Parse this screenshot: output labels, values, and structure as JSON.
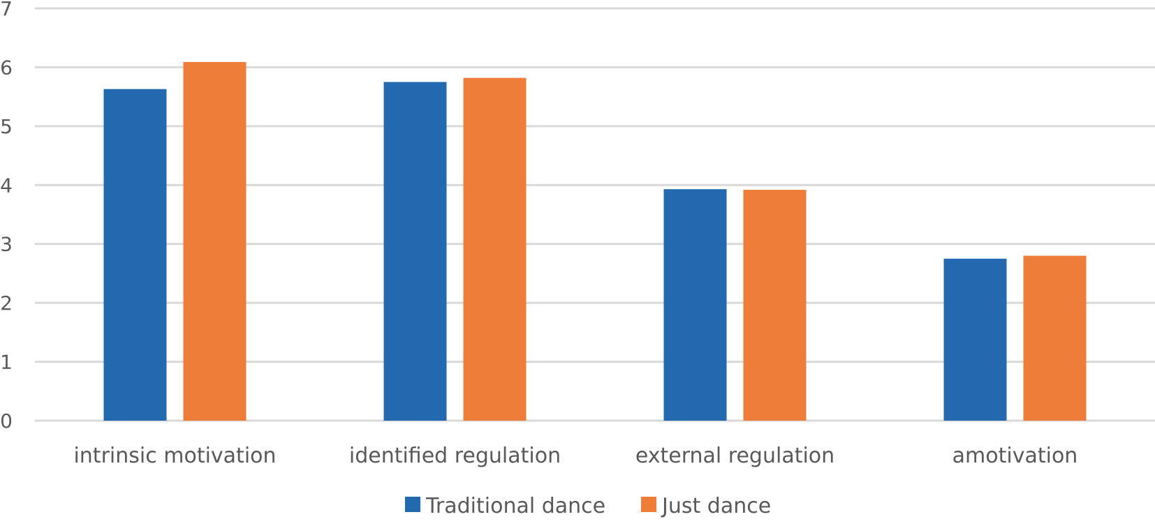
{
  "chart_data": {
    "type": "bar",
    "categories": [
      "intrinsic motivation",
      "identified regulation",
      "external regulation",
      "amotivation"
    ],
    "series": [
      {
        "name": "Traditional dance",
        "color": "#2369b0",
        "values": [
          5.63,
          5.75,
          3.93,
          2.75
        ]
      },
      {
        "name": "Just dance",
        "color": "#ee7d3a",
        "values": [
          6.09,
          5.82,
          3.92,
          2.8
        ]
      }
    ],
    "title": "",
    "xlabel": "",
    "ylabel": "",
    "ylim": [
      0,
      7
    ],
    "yticks": [
      "0",
      "1",
      "2",
      "3",
      "4",
      "5",
      "6",
      "7"
    ],
    "grid": true,
    "legend_position": "bottom"
  }
}
